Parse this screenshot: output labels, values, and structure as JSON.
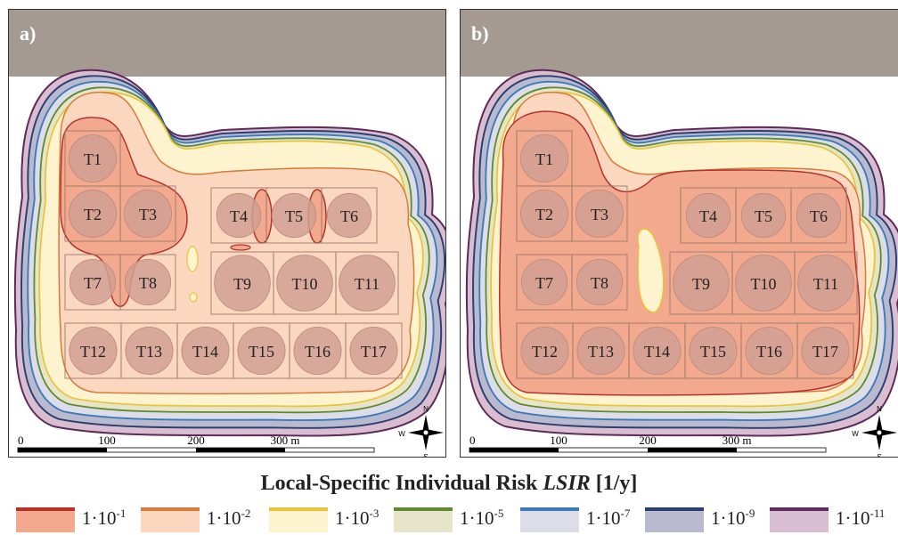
{
  "panels": [
    {
      "id": "a",
      "label": "a)"
    },
    {
      "id": "b",
      "label": "b)"
    }
  ],
  "tanks": [
    "T1",
    "T2",
    "T3",
    "T4",
    "T5",
    "T6",
    "T7",
    "T8",
    "T9",
    "T10",
    "T11",
    "T12",
    "T13",
    "T14",
    "T15",
    "T16",
    "T17"
  ],
  "scale_bar": {
    "labels": [
      "0",
      "100",
      "200",
      "300 m"
    ]
  },
  "compass": {
    "n": "N",
    "s": "S",
    "e": "E",
    "w": "W"
  },
  "legend": {
    "title_prefix": "Local-Specific Individual Risk ",
    "title_symbol": "LSIR",
    "title_unit": " [1/y]",
    "items": [
      {
        "base": "1·10",
        "exp": "-1",
        "fill": "#f2a98e",
        "stroke": "#b5322a"
      },
      {
        "base": "1·10",
        "exp": "-2",
        "fill": "#fbd7c0",
        "stroke": "#d87a3c"
      },
      {
        "base": "1·10",
        "exp": "-3",
        "fill": "#fdf3cf",
        "stroke": "#e9c43a"
      },
      {
        "base": "1·10",
        "exp": "-5",
        "fill": "#e6e5c9",
        "stroke": "#5f8a33"
      },
      {
        "base": "1·10",
        "exp": "-7",
        "fill": "#dcdde8",
        "stroke": "#3d7bb6"
      },
      {
        "base": "1·10",
        "exp": "-9",
        "fill": "#b9b9cf",
        "stroke": "#2c3f6f"
      },
      {
        "base": "1·10",
        "exp": "-11",
        "fill": "#d9bdd0",
        "stroke": "#5e2a57"
      }
    ]
  }
}
